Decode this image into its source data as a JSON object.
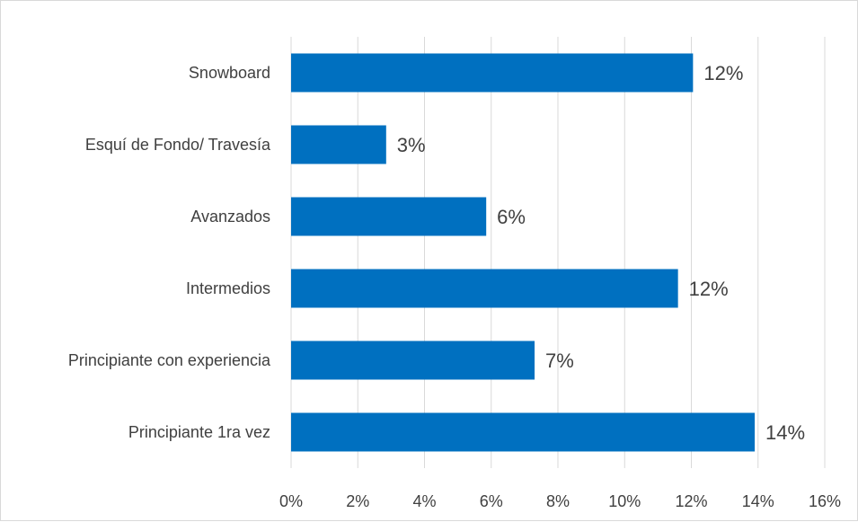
{
  "chart_data": {
    "type": "bar",
    "orientation": "horizontal",
    "categories": [
      "Snowboard",
      "Esquí de Fondo/ Travesía",
      "Avanzados",
      "Intermedios",
      "Principiante con experiencia",
      "Principiante 1ra vez"
    ],
    "values": [
      12.05,
      2.85,
      5.85,
      11.6,
      7.3,
      13.9
    ],
    "data_labels": [
      "12%",
      "3%",
      "6%",
      "12%",
      "7%",
      "14%"
    ],
    "x_ticks": [
      "0%",
      "2%",
      "4%",
      "6%",
      "8%",
      "10%",
      "12%",
      "14%",
      "16%"
    ],
    "xlim": [
      0,
      16
    ],
    "bar_color": "#0070c0",
    "grid": true,
    "legend": "none"
  }
}
